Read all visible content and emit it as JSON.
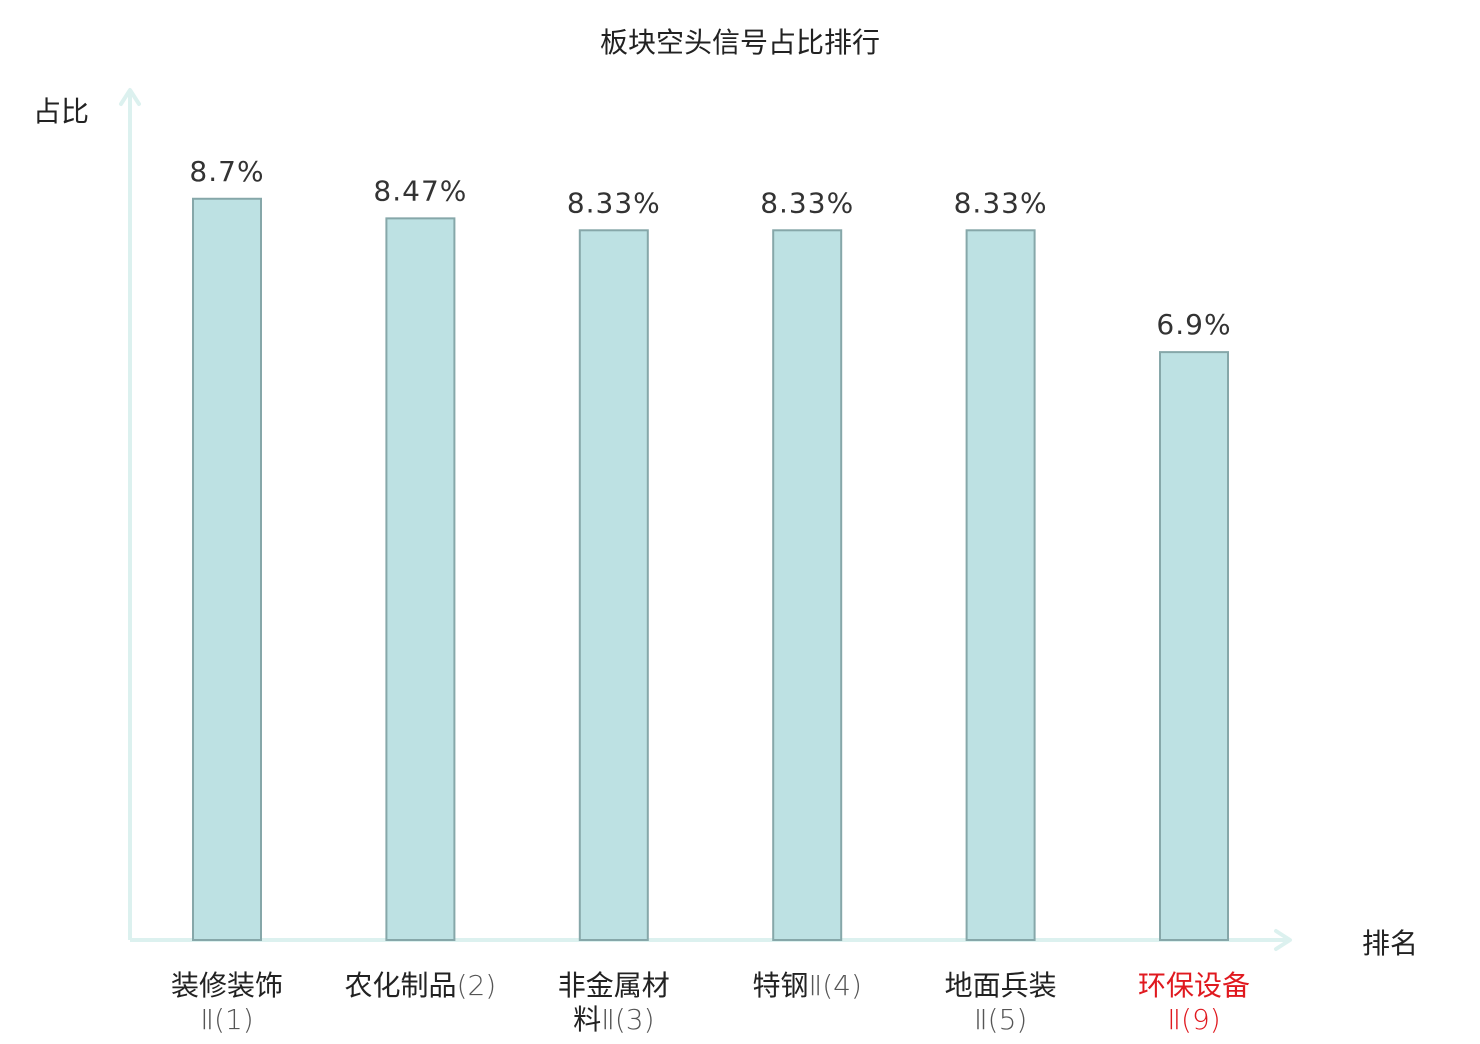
{
  "colors": {
    "bar_fill": "#bde1e3",
    "bar_stroke": "#86a7a9",
    "axis": "#dcf1ef",
    "text": "#222222",
    "value_text": "#333333",
    "category_num_text": "#555555",
    "highlight": "#e0191f"
  },
  "chart_data": {
    "type": "bar",
    "title": "板块空头信号占比排行",
    "xlabel": "排名",
    "ylabel": "占比",
    "ylim": [
      0,
      10
    ],
    "grid": false,
    "categories": [
      {
        "lines": [
          [
            "装修装饰",
            ""
          ],
          [
            "",
            "Ⅱ(1)"
          ]
        ],
        "highlight": false
      },
      {
        "lines": [
          [
            "农化制品",
            "(2)"
          ]
        ],
        "highlight": false
      },
      {
        "lines": [
          [
            "非金属材",
            ""
          ],
          [
            "料",
            "Ⅱ(3)"
          ]
        ],
        "highlight": false
      },
      {
        "lines": [
          [
            "特钢",
            "Ⅱ(4)"
          ]
        ],
        "highlight": false
      },
      {
        "lines": [
          [
            "地面兵装",
            ""
          ],
          [
            "",
            "Ⅱ(5)"
          ]
        ],
        "highlight": false
      },
      {
        "lines": [
          [
            "环保设备",
            ""
          ],
          [
            "",
            "Ⅱ(9)"
          ]
        ],
        "highlight": true
      }
    ],
    "values": [
      8.7,
      8.47,
      8.33,
      8.33,
      8.33,
      6.9
    ],
    "value_labels": [
      "8.7%",
      "8.47%",
      "8.33%",
      "8.33%",
      "8.33%",
      "6.9%"
    ]
  }
}
